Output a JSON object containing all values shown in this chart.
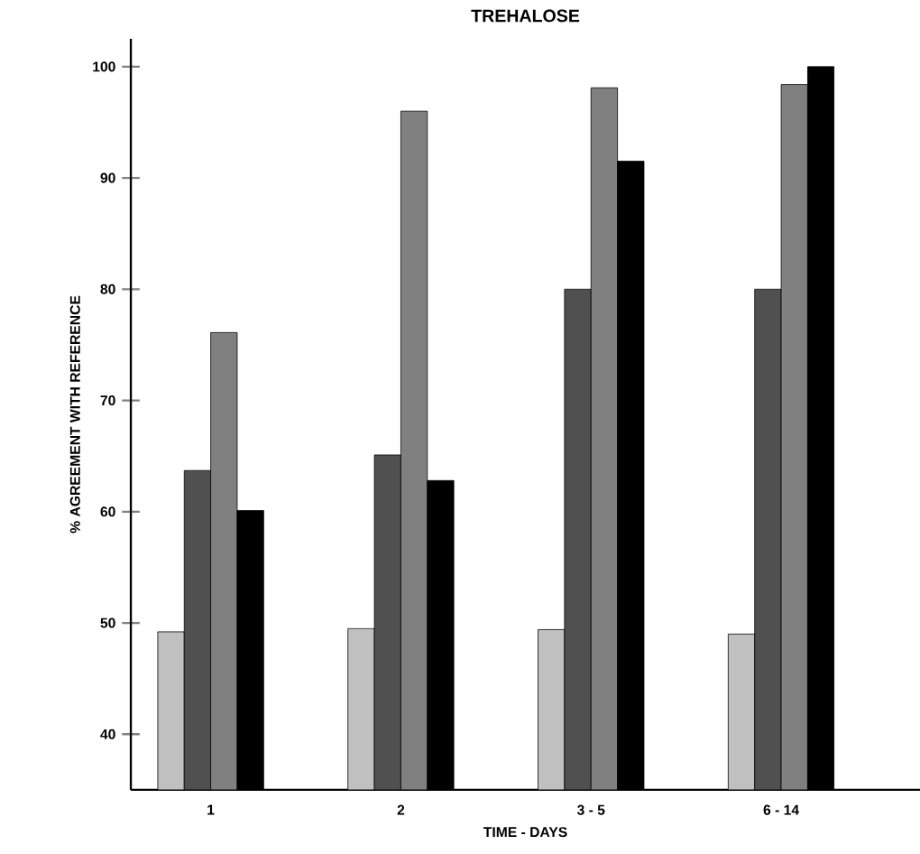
{
  "chart_data": {
    "type": "bar",
    "title": "TREHALOSE",
    "xlabel": "TIME - DAYS",
    "ylabel": "% AGREEMENT WITH REFERENCE",
    "categories": [
      "1",
      "2",
      "3 - 5",
      "6 - 14"
    ],
    "series": [
      {
        "color": "#c0c0c0",
        "values": [
          49.2,
          49.5,
          49.4,
          49.0
        ]
      },
      {
        "color": "#505050",
        "values": [
          63.7,
          65.1,
          80.0,
          80.0
        ]
      },
      {
        "color": "#808080",
        "values": [
          76.1,
          96.0,
          98.1,
          98.4
        ]
      },
      {
        "color": "#000000",
        "values": [
          60.1,
          62.8,
          91.5,
          100.0
        ]
      }
    ],
    "ylim": [
      35,
      102.5
    ],
    "yticks": [
      40,
      50,
      60,
      70,
      80,
      90,
      100
    ]
  }
}
